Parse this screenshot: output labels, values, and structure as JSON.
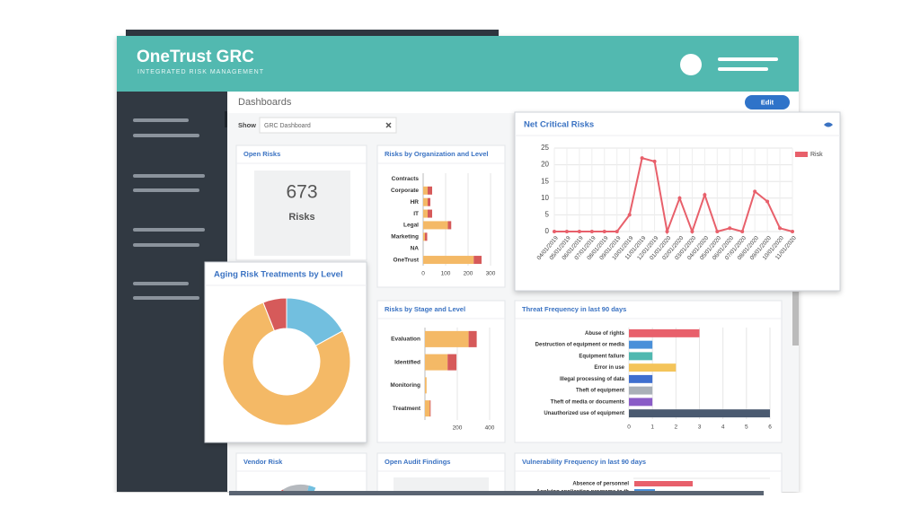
{
  "header": {
    "title": "OneTrust GRC",
    "subtitle": "INTEGRATED RISK MANAGEMENT"
  },
  "toolbar": {
    "title": "Dashboards",
    "button": "Edit",
    "show_label": "Show",
    "dashboard": "GRC Dashboard"
  },
  "chart_data": [
    {
      "type": "kpi",
      "title": "Open Risks",
      "value": 673,
      "label": "Risks"
    },
    {
      "type": "hbar_stacked",
      "title": "Risks by Organization and Level",
      "categories": [
        "Contracts",
        "Corporate",
        "HR",
        "IT",
        "Legal",
        "Marketing",
        "NA",
        "OneTrust"
      ],
      "series": [
        {
          "color": "#f4b966",
          "values": [
            0,
            20,
            20,
            20,
            110,
            8,
            0,
            225
          ]
        },
        {
          "color": "#d65a5a",
          "values": [
            0,
            20,
            12,
            20,
            15,
            10,
            0,
            35
          ]
        }
      ],
      "xlim": [
        0,
        300
      ],
      "xticks": [
        0,
        100,
        200,
        300
      ],
      "grid": true
    },
    {
      "type": "donut",
      "title": "Aging Risk Treatments by Level",
      "values": [
        17,
        77,
        6
      ],
      "colors": [
        "#72bfdf",
        "#f4b966",
        "#d65a5a"
      ]
    },
    {
      "type": "line",
      "title": "Net Critical Risks",
      "categories": [
        "04/01/2019",
        "05/01/2019",
        "06/01/2019",
        "07/01/2019",
        "08/01/2019",
        "09/01/2019",
        "10/01/2019",
        "11/01/2019",
        "12/01/2019",
        "01/01/2020",
        "02/01/2020",
        "03/01/2020",
        "04/01/2020",
        "05/01/2020",
        "06/01/2020",
        "07/01/2020",
        "08/01/2020",
        "09/01/2020",
        "10/01/2020",
        "11/01/2020"
      ],
      "series": [
        {
          "name": "Risk",
          "color": "#e8606b",
          "values": [
            0,
            0,
            0,
            0,
            0,
            0,
            5,
            22,
            21,
            0,
            10,
            0,
            11,
            0,
            1,
            0,
            12,
            9,
            1,
            0
          ]
        }
      ],
      "ylim": [
        0,
        25
      ],
      "yticks": [
        0,
        5,
        10,
        15,
        20,
        25
      ],
      "grid": true,
      "legend": "top-right"
    },
    {
      "type": "hbar_stacked",
      "title": "Risks by Stage and Level",
      "categories": [
        "Evaluation",
        "Identified",
        "Monitoring",
        "Treatment"
      ],
      "series": [
        {
          "color": "#f4b966",
          "values": [
            270,
            140,
            10,
            30
          ]
        },
        {
          "color": "#d65a5a",
          "values": [
            50,
            55,
            0,
            5
          ]
        }
      ],
      "xlim": [
        0,
        400
      ],
      "xticks": [
        200,
        400
      ],
      "grid": true
    },
    {
      "type": "hbar",
      "title": "Threat Frequency in last 90 days",
      "categories": [
        "Abuse of rights",
        "Destruction of equipment or media",
        "Equipment failure",
        "Error in use",
        "Illegal processing of data",
        "Theft of equipment",
        "Theft of media or documents",
        "Unauthorized use of equipment"
      ],
      "values": [
        3,
        1,
        1,
        2,
        1,
        1,
        1,
        6
      ],
      "colors": [
        "#e8606b",
        "#4a90d9",
        "#4fb8b0",
        "#f4c45a",
        "#3f6fcf",
        "#a9b0b8",
        "#8a5cc7",
        "#4a5a70"
      ],
      "xlim": [
        0,
        6
      ],
      "xticks": [
        0,
        1,
        2,
        3,
        4,
        5,
        6
      ],
      "grid": true
    }
  ],
  "other_widgets": [
    {
      "title": "Vendor Risk"
    },
    {
      "title": "Open Audit Findings"
    },
    {
      "title": "Vulnerability Frequency in last 90 days",
      "categories": [
        "Absence of personnel",
        "Applying application programs to th"
      ]
    }
  ]
}
